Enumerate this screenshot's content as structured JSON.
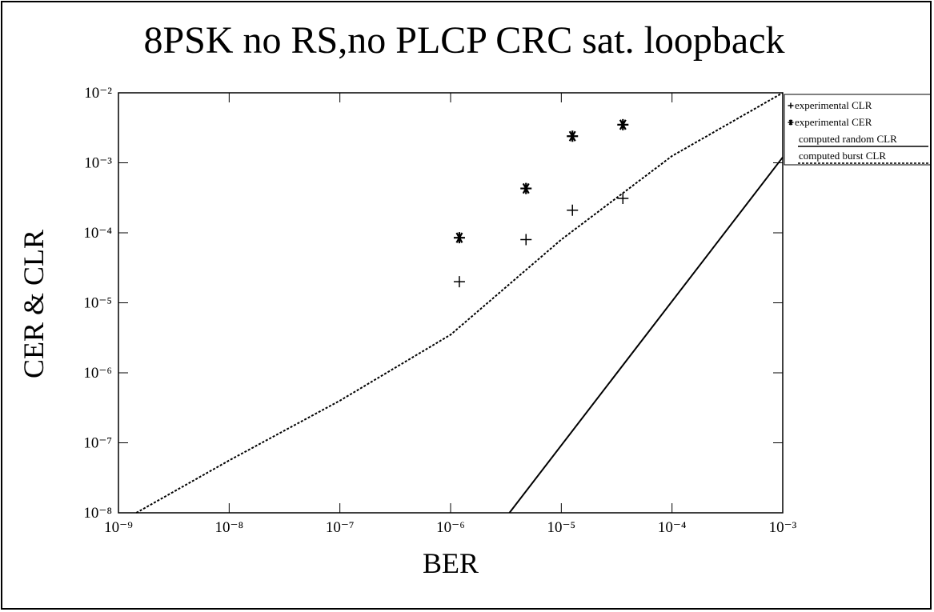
{
  "chart_data": {
    "type": "scatter",
    "title": "8PSK no RS,no PLCP CRC sat. loopback",
    "x_label": "BER",
    "y_label": "CER & CLR",
    "xscale": "log",
    "yscale": "log",
    "xlim": [
      1e-09,
      0.001
    ],
    "ylim": [
      1e-08,
      0.01
    ],
    "xticks": [
      {
        "value": 1e-09,
        "label": "10⁻⁹"
      },
      {
        "value": 1e-08,
        "label": "10⁻⁸"
      },
      {
        "value": 1e-07,
        "label": "10⁻⁷"
      },
      {
        "value": 1e-06,
        "label": "10⁻⁶"
      },
      {
        "value": 1e-05,
        "label": "10⁻⁵"
      },
      {
        "value": 0.0001,
        "label": "10⁻⁴"
      },
      {
        "value": 0.001,
        "label": "10⁻³"
      }
    ],
    "yticks": [
      {
        "value": 1e-08,
        "label": "10⁻⁸"
      },
      {
        "value": 1e-07,
        "label": "10⁻⁷"
      },
      {
        "value": 1e-06,
        "label": "10⁻⁶"
      },
      {
        "value": 1e-05,
        "label": "10⁻⁵"
      },
      {
        "value": 0.0001,
        "label": "10⁻⁴"
      },
      {
        "value": 0.001,
        "label": "10⁻³"
      },
      {
        "value": 0.01,
        "label": "10⁻²"
      }
    ],
    "grid": false,
    "legend": "outside-right",
    "series": [
      {
        "name": "experimental CLR",
        "type": "scatter",
        "marker": "plus",
        "color": "#000000",
        "x": [
          1.2e-06,
          4.8e-06,
          1.26e-05,
          3.6e-05
        ],
        "values": [
          2e-05,
          8e-05,
          0.00021,
          0.00031
        ]
      },
      {
        "name": "experimental CER",
        "type": "scatter",
        "marker": "star",
        "color": "#000000",
        "x": [
          1.2e-06,
          4.8e-06,
          1.26e-05,
          3.6e-05
        ],
        "values": [
          8.5e-05,
          0.00043,
          0.0024,
          0.0035
        ]
      },
      {
        "name": "computed random CLR",
        "type": "line",
        "style": "solid",
        "color": "#000000",
        "x": [
          3.4e-06,
          0.001
        ],
        "values": [
          1e-08,
          0.0012
        ]
      },
      {
        "name": "computed burst CLR",
        "type": "line",
        "style": "dotted",
        "color": "#000000",
        "x": [
          1.45e-09,
          1e-08,
          1e-07,
          1e-06,
          1e-05,
          0.0001,
          0.001
        ],
        "values": [
          1e-08,
          5.6e-08,
          4e-07,
          3.5e-06,
          8e-05,
          0.00125,
          0.01
        ]
      }
    ]
  }
}
